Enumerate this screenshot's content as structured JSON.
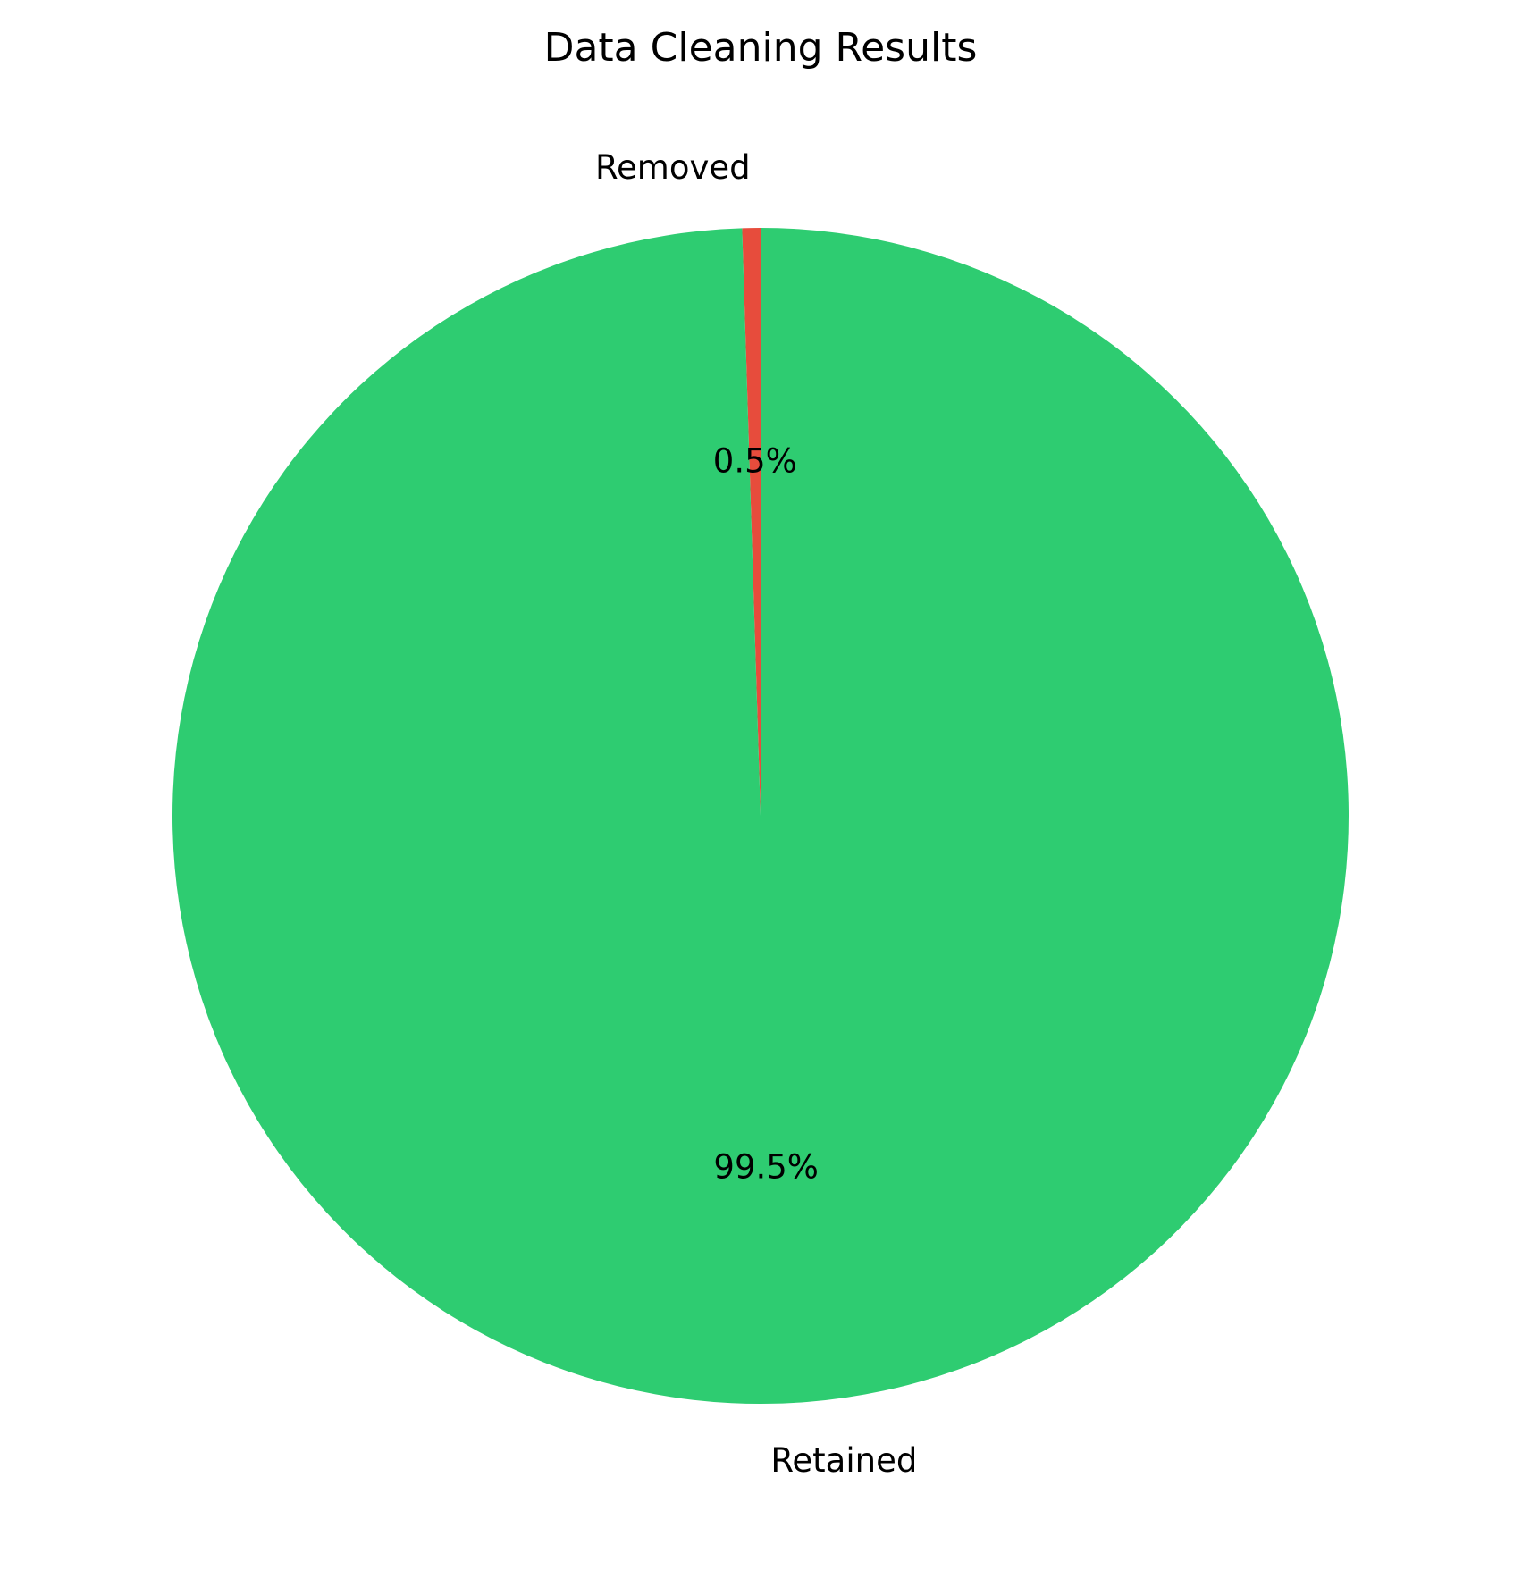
{
  "chart_data": {
    "type": "pie",
    "title": "Data Cleaning Results",
    "slices": [
      {
        "label": "Removed",
        "value": 0.5,
        "pct_label": "0.5%",
        "color": "#e74c3c"
      },
      {
        "label": "Retained",
        "value": 99.5,
        "pct_label": "99.5%",
        "color": "#2ecc71"
      }
    ],
    "start_angle_deg": 90,
    "direction": "counterclockwise",
    "legend": "none"
  }
}
